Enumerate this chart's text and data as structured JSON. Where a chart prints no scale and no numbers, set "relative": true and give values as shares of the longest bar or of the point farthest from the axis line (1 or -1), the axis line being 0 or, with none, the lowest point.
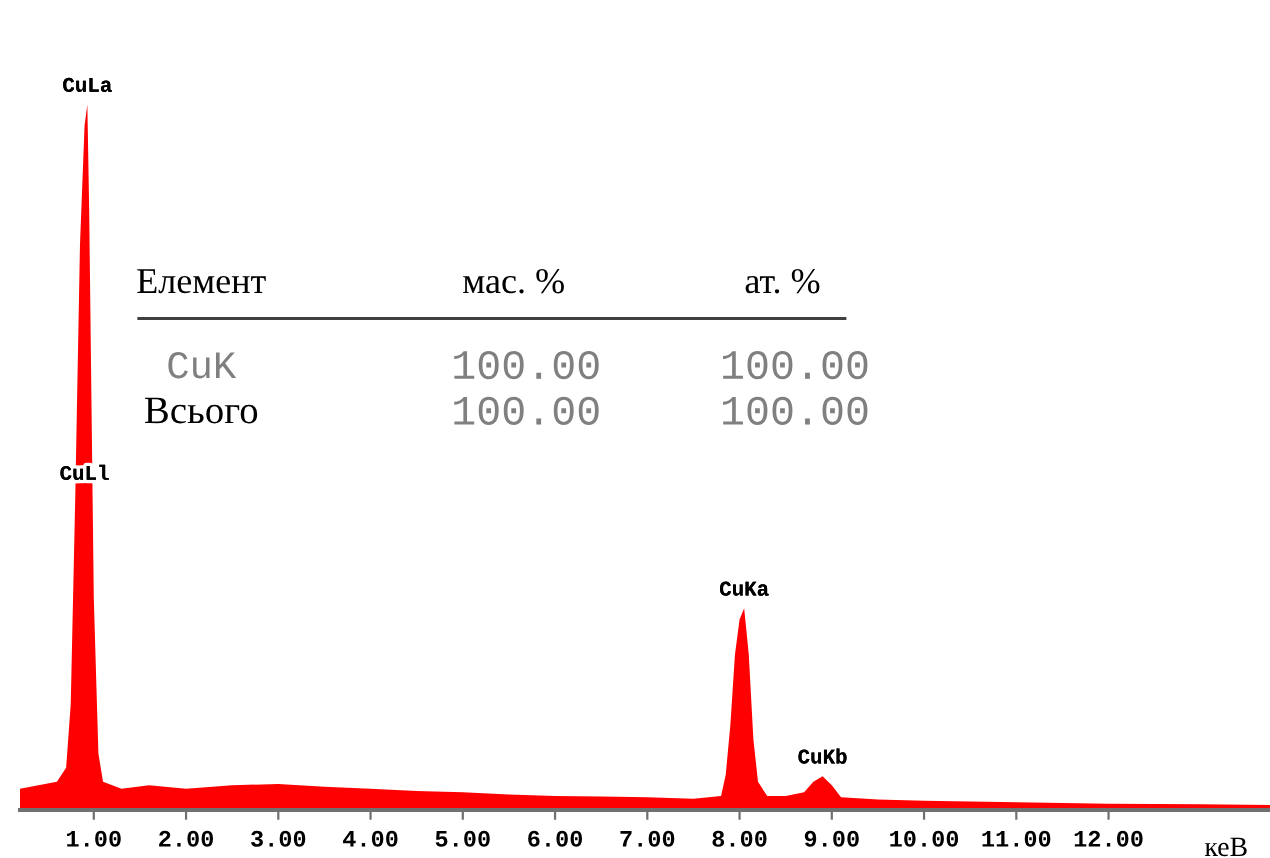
{
  "chart_data": {
    "type": "area",
    "relative": true,
    "color": "#ff0000",
    "xlabel": "кеВ",
    "xlim": [
      0.2,
      13.75
    ],
    "xticks": [
      {
        "value": 1,
        "label": "1.00"
      },
      {
        "value": 2,
        "label": "2.00"
      },
      {
        "value": 3,
        "label": "3.00"
      },
      {
        "value": 4,
        "label": "4.00"
      },
      {
        "value": 5,
        "label": "5.00"
      },
      {
        "value": 6,
        "label": "6.00"
      },
      {
        "value": 7,
        "label": "7.00"
      },
      {
        "value": 8,
        "label": "8.00"
      },
      {
        "value": 9,
        "label": "9.00"
      },
      {
        "value": 10,
        "label": "10.00"
      },
      {
        "value": 11,
        "label": "11.00"
      },
      {
        "value": 12,
        "label": "12.00"
      }
    ],
    "tick_labels": "x",
    "grid": false,
    "legend": false,
    "x": [
      0.2,
      0.4,
      0.6,
      0.7,
      0.75,
      0.8,
      0.85,
      0.9,
      0.93,
      0.95,
      1.0,
      1.05,
      1.1,
      1.3,
      1.6,
      2.0,
      2.5,
      3.0,
      3.5,
      4.0,
      4.5,
      5.0,
      5.5,
      6.0,
      6.5,
      7.0,
      7.5,
      7.8,
      7.85,
      7.9,
      7.95,
      8.0,
      8.05,
      8.1,
      8.15,
      8.2,
      8.3,
      8.5,
      8.7,
      8.8,
      8.9,
      9.0,
      9.1,
      9.5,
      10,
      11,
      12,
      13,
      13.75
    ],
    "values": [
      0.03,
      0.035,
      0.04,
      0.06,
      0.15,
      0.45,
      0.8,
      0.97,
      1.0,
      0.85,
      0.3,
      0.08,
      0.04,
      0.03,
      0.035,
      0.03,
      0.035,
      0.037,
      0.033,
      0.03,
      0.027,
      0.025,
      0.022,
      0.02,
      0.019,
      0.018,
      0.016,
      0.02,
      0.05,
      0.12,
      0.22,
      0.27,
      0.286,
      0.22,
      0.1,
      0.04,
      0.02,
      0.02,
      0.025,
      0.04,
      0.048,
      0.035,
      0.018,
      0.015,
      0.013,
      0.011,
      0.009,
      0.008,
      0.007
    ],
    "annotations": [
      {
        "text": "CuLa",
        "x": 0.93,
        "y": 1.0
      },
      {
        "text": "CuLl",
        "x": 0.9,
        "y": 0.45
      },
      {
        "text": "CuKa",
        "x": 8.05,
        "y": 0.286
      },
      {
        "text": "CuKb",
        "x": 8.9,
        "y": 0.048
      },
      "Елемент",
      "мас. %",
      "ат. %",
      "CuK",
      "100.00",
      "100.00",
      "Всього",
      "100.00",
      "100.00"
    ]
  }
}
